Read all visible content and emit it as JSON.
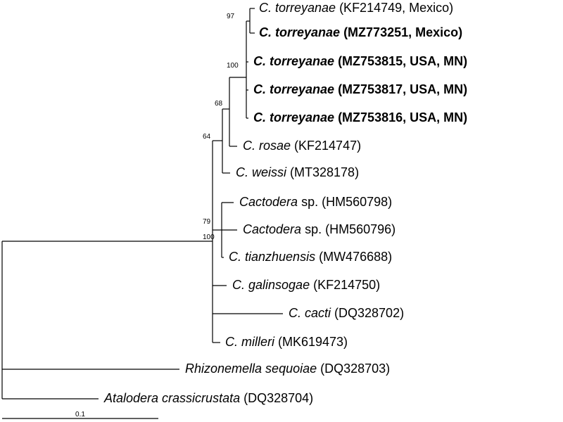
{
  "leaves": [
    {
      "italic": "C. torreyanae",
      "rest": "(KF214749, Mexico)"
    },
    {
      "italic": "C. torreyanae",
      "rest": "(MZ773251, Mexico)"
    },
    {
      "italic": "C. torreyanae",
      "rest": "(MZ753815, USA, MN)"
    },
    {
      "italic": "C. torreyanae",
      "rest": "(MZ753817, USA, MN)"
    },
    {
      "italic": "C. torreyanae",
      "rest": "(MZ753816, USA, MN)"
    },
    {
      "italic": "C. rosae",
      "rest": "(KF214747)"
    },
    {
      "italic": "C. weissi",
      "rest": "(MT328178)"
    },
    {
      "italic": "Cactodera",
      "rest": "sp. (HM560798)"
    },
    {
      "italic": "Cactodera",
      "rest": "sp. (HM560796)"
    },
    {
      "italic": "C. tianzhuensis",
      "rest": "(MW476688)"
    },
    {
      "italic": "C. galinsogae",
      "rest": "(KF214750)"
    },
    {
      "italic": "C. cacti",
      "rest": "(DQ328702)"
    },
    {
      "italic": "C. milleri",
      "rest": "(MK619473)"
    },
    {
      "italic": "Rhizonemella sequoiae",
      "rest": "(DQ328703)"
    },
    {
      "italic": "Atalodera crassicrustata",
      "rest": "(DQ328704)"
    }
  ],
  "support": [
    97,
    100,
    68,
    64,
    79,
    100
  ],
  "scale_bar": {
    "label": "0.1"
  }
}
